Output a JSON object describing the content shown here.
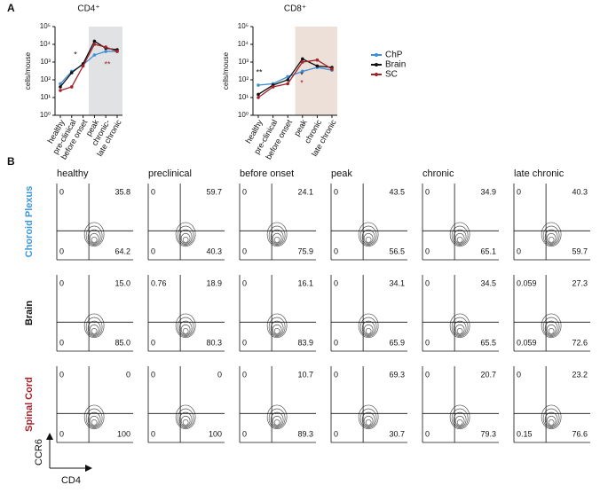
{
  "panel_a_label": "A",
  "panel_b_label": "B",
  "chart_data": [
    {
      "type": "line",
      "title": "CD4⁺",
      "y_label": "cells/mouse",
      "log_y": true,
      "categories": [
        "healthy",
        "pre-clinical",
        "before onset",
        "peak",
        "chronic-",
        "late chronic"
      ],
      "series": [
        {
          "color": "#3d8fd6",
          "values": [
            60,
            300,
            700,
            2500,
            4000,
            4000
          ]
        },
        {
          "color": "#111111",
          "values": [
            40,
            250,
            800,
            15000,
            6000,
            5000
          ]
        },
        {
          "color": "#a3232a",
          "values": [
            25,
            40,
            600,
            10000,
            7000,
            4000
          ]
        }
      ],
      "ylim": [
        1,
        100000
      ],
      "yticks": [
        {
          "value": 1,
          "label": "10⁰"
        },
        {
          "value": 10,
          "label": "10¹"
        },
        {
          "value": 100,
          "label": "10²"
        },
        {
          "value": 1000,
          "label": "10³"
        },
        {
          "value": 10000,
          "label": "10⁴"
        },
        {
          "value": 100000,
          "label": "10⁵"
        }
      ],
      "highlight_start": "peak",
      "highlight_color": "#e1e2e4",
      "annotations": [
        "*",
        "**"
      ]
    },
    {
      "type": "line",
      "title": "CD8⁺",
      "y_label": "cells/mouse",
      "log_y": true,
      "categories": [
        "healthy",
        "pre-clinical",
        "before onset",
        "peak",
        "chronic",
        "late chronic"
      ],
      "series": [
        {
          "name": "ChP",
          "color": "#3d8fd6",
          "values": [
            50,
            60,
            150,
            300,
            500,
            350
          ]
        },
        {
          "name": "Brain",
          "color": "#111111",
          "values": [
            15,
            50,
            100,
            1500,
            600,
            500
          ]
        },
        {
          "name": "SC",
          "color": "#a3232a",
          "values": [
            10,
            40,
            60,
            1000,
            1300,
            400
          ]
        }
      ],
      "ylim": [
        1,
        100000
      ],
      "yticks": [
        {
          "value": 1,
          "label": "10⁰"
        },
        {
          "value": 10,
          "label": "10¹"
        },
        {
          "value": 100,
          "label": "10²"
        },
        {
          "value": 1000,
          "label": "10³"
        },
        {
          "value": 10000,
          "label": "10⁴"
        },
        {
          "value": 100000,
          "label": "10⁵"
        }
      ],
      "highlight_start": "peak",
      "highlight_color": "#ece0d8",
      "annotations": [
        "**",
        "*",
        "*"
      ]
    }
  ],
  "flow": {
    "columns": [
      "healthy",
      "preclinical",
      "before onset",
      "peak",
      "chronic",
      "late chronic"
    ],
    "y_axis": "CCR6",
    "x_axis": "CD4",
    "rows": [
      {
        "label": "Choroid Plexus",
        "color": "#3d9ad8",
        "cells": [
          [
            "0",
            "35.8",
            "0",
            "64.2"
          ],
          [
            "0",
            "59.7",
            "0",
            "40.3"
          ],
          [
            "0",
            "24.1",
            "0",
            "75.9"
          ],
          [
            "0",
            "43.5",
            "0",
            "56.5"
          ],
          [
            "0",
            "34.9",
            "0",
            "65.1"
          ],
          [
            "0",
            "40.3",
            "0",
            "59.7"
          ]
        ]
      },
      {
        "label": "Brain",
        "color": "#111111",
        "cells": [
          [
            "0",
            "15.0",
            "0",
            "85.0"
          ],
          [
            "0.76",
            "18.9",
            "0",
            "80.3"
          ],
          [
            "0",
            "16.1",
            "0",
            "83.9"
          ],
          [
            "0",
            "34.1",
            "0",
            "65.9"
          ],
          [
            "0",
            "34.5",
            "0",
            "65.5"
          ],
          [
            "0.059",
            "27.3",
            "0.059",
            "72.6"
          ]
        ]
      },
      {
        "label": "Spinal Cord",
        "color": "#a3232a",
        "cells": [
          [
            "0",
            "0",
            "0",
            "100"
          ],
          [
            "0",
            "0",
            "0",
            "100"
          ],
          [
            "0",
            "10.7",
            "0",
            "89.3"
          ],
          [
            "0",
            "69.3",
            "0",
            "30.7"
          ],
          [
            "0",
            "20.7",
            "0",
            "79.3"
          ],
          [
            "0",
            "23.2",
            "0.15",
            "76.6"
          ]
        ]
      }
    ]
  }
}
